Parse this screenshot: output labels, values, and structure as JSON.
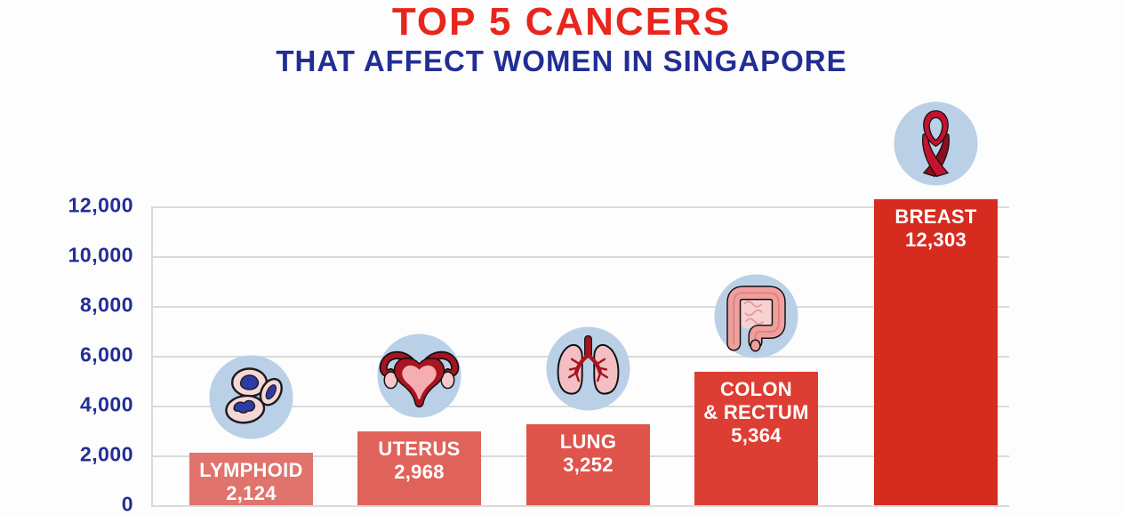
{
  "chart_data": {
    "type": "bar",
    "title": "TOP 5 CANCERS",
    "subtitle": "THAT AFFECT WOMEN IN SINGAPORE",
    "categories": [
      "LYMPHOID",
      "UTERUS",
      "LUNG",
      "COLON & RECTUM",
      "BREAST"
    ],
    "category_lines": [
      [
        "LYMPHOID"
      ],
      [
        "UTERUS"
      ],
      [
        "LUNG"
      ],
      [
        "COLON",
        "& RECTUM"
      ],
      [
        "BREAST"
      ]
    ],
    "values": [
      2124,
      2968,
      3252,
      5364,
      12303
    ],
    "value_labels": [
      "2,124",
      "2,968",
      "3,252",
      "5,364",
      "12,303"
    ],
    "icons": [
      "lymphoid-cells-icon",
      "uterus-icon",
      "lungs-icon",
      "colon-icon",
      "breast-ribbon-icon"
    ],
    "xlabel": "",
    "ylabel": "",
    "ylim": [
      0,
      12000
    ],
    "ytick_interval": 2000,
    "yticks": [
      "12,000",
      "10,000",
      "8,000",
      "6,000",
      "4,000",
      "2,000",
      "0"
    ],
    "grid": true,
    "legend": false,
    "title_color": "#e8261d",
    "subtitle_color": "#222e96",
    "axis_label_color": "#222e96",
    "gridline_color": "#dadada",
    "bar_colors": [
      "#e0736c",
      "#e0635b",
      "#df544b",
      "#dd3e34",
      "#d62b1f"
    ],
    "bar_text_color": "#ffffff",
    "icon_circle_color": "#b9d0e7"
  }
}
